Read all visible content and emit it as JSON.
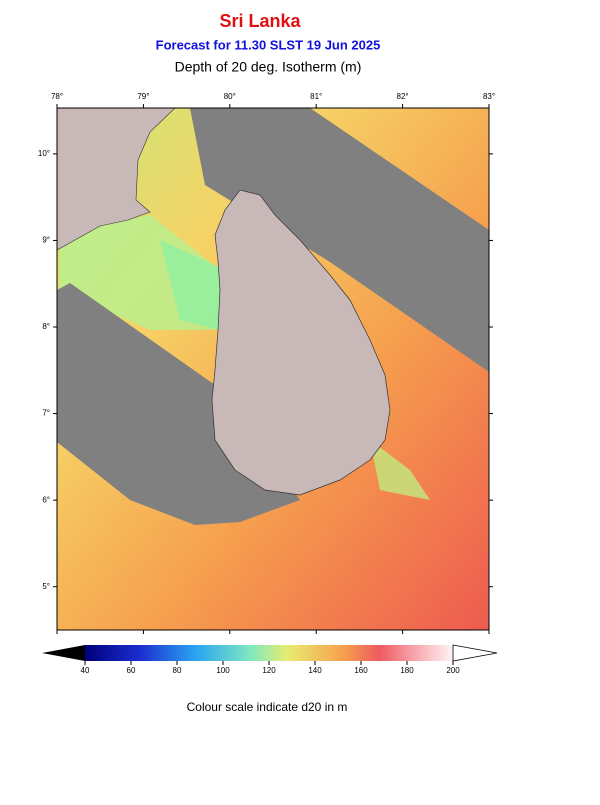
{
  "header": {
    "title": "Sri Lanka",
    "subtitle": "Forecast for  11.30 SLST 19 Jun 2025",
    "map_title": "Depth of 20 deg. Isotherm (m)"
  },
  "map": {
    "lon_range": [
      78,
      83
    ],
    "lat_range": [
      4.5,
      10.53
    ],
    "lon_labels": [
      {
        "value": 78,
        "label": "78°"
      },
      {
        "value": 79,
        "label": "79°"
      },
      {
        "value": 80,
        "label": "80°"
      },
      {
        "value": 81,
        "label": "81°"
      },
      {
        "value": 82,
        "label": "82°"
      },
      {
        "value": 83,
        "label": "83°"
      }
    ],
    "lat_labels": [
      {
        "value": 10,
        "label": "10°"
      },
      {
        "value": 9,
        "label": "9°"
      },
      {
        "value": 8,
        "label": "8°"
      },
      {
        "value": 7,
        "label": "7°"
      },
      {
        "value": 6,
        "label": "6°"
      },
      {
        "value": 5,
        "label": "5°"
      }
    ]
  },
  "colorbar": {
    "range": [
      40,
      200
    ],
    "ticks": [
      40,
      60,
      80,
      100,
      120,
      140,
      160,
      180,
      200
    ]
  },
  "caption": "Colour scale indicate d20 in m"
}
